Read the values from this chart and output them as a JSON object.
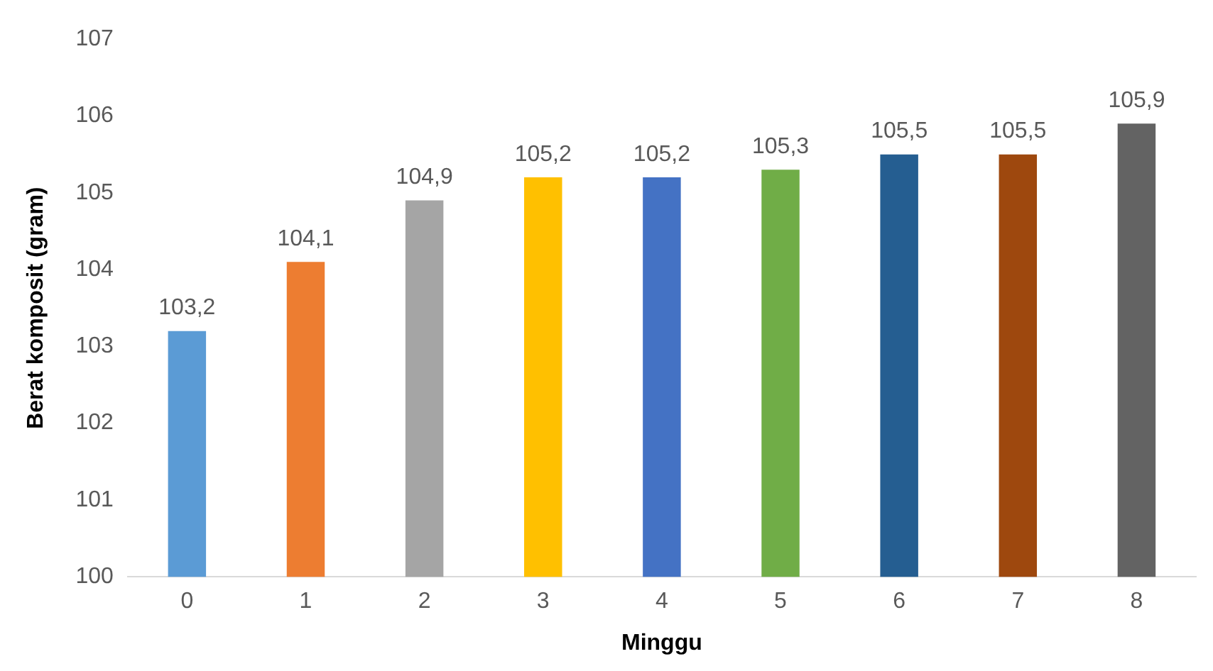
{
  "chart_data": {
    "type": "bar",
    "xlabel": "Minggu",
    "ylabel": "Berat komposit (gram)",
    "categories": [
      "0",
      "1",
      "2",
      "3",
      "4",
      "5",
      "6",
      "7",
      "8"
    ],
    "values": [
      103.2,
      104.1,
      104.9,
      105.2,
      105.2,
      105.3,
      105.5,
      105.5,
      105.9
    ],
    "colors": [
      "#5b9bd5",
      "#ed7d31",
      "#a5a5a5",
      "#ffc000",
      "#4472c4",
      "#70ad47",
      "#255e91",
      "#9e480e",
      "#636363"
    ],
    "value_labels": [
      "103,2",
      "104,1",
      "104,9",
      "105,2",
      "105,2",
      "105,3",
      "105,5",
      "105,5",
      "105,9"
    ],
    "ylim": [
      100,
      107
    ],
    "yticks": [
      100,
      101,
      102,
      103,
      104,
      105,
      106,
      107
    ],
    "grid": false,
    "legend": false
  }
}
